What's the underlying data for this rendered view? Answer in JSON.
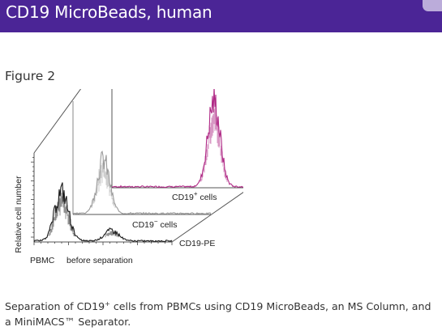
{
  "header": {
    "title": "CD19 MicroBeads, human"
  },
  "figure": {
    "label": "Figure 2"
  },
  "chart_data": {
    "type": "histogram-overlay",
    "ylabel": "Relative cell number",
    "xlabel": "CD19-PE",
    "bottom_labels": {
      "left": "PBMC",
      "right": "before separation"
    },
    "series": [
      {
        "label_base": "CD19",
        "label_sup": "+",
        "label_suffix": " cells",
        "color": "#b02a86",
        "peaks": [
          {
            "center": 0.74,
            "width": 0.045,
            "height": 0.95
          }
        ]
      },
      {
        "label_base": "CD19",
        "label_sup": "−",
        "label_suffix": " cells",
        "color": "#9b9b9b",
        "peaks": [
          {
            "center": 0.22,
            "width": 0.045,
            "height": 0.6
          }
        ]
      },
      {
        "label_base": "",
        "label_sup": "",
        "label_suffix": "",
        "color": "#1a1a1a",
        "peaks": [
          {
            "center": 0.2,
            "width": 0.05,
            "height": 0.55
          },
          {
            "center": 0.56,
            "width": 0.05,
            "height": 0.12
          }
        ]
      }
    ]
  },
  "caption": {
    "part1": "Separation of CD19",
    "sup": "+",
    "part2": " cells from PBMCs using CD19 MicroBeads, an MS Column, and a MiniMACS™ Separator."
  }
}
